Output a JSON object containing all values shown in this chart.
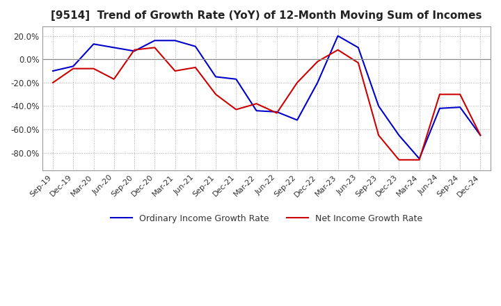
{
  "title": "[9514]  Trend of Growth Rate (YoY) of 12-Month Moving Sum of Incomes",
  "ylim": [
    -0.95,
    0.28
  ],
  "yticks": [
    0.2,
    0.0,
    -0.2,
    -0.4,
    -0.6,
    -0.8
  ],
  "ytick_labels": [
    "20.0%",
    "0.0%",
    "-20.0%",
    "-40.0%",
    "-60.0%",
    "-80.0%"
  ],
  "legend_labels": [
    "Ordinary Income Growth Rate",
    "Net Income Growth Rate"
  ],
  "line_colors": [
    "#0000cc",
    "#cc0000"
  ],
  "background_color": "#ffffff",
  "grid_color": "#aaaaaa",
  "grid_style": "dotted",
  "x_labels": [
    "Sep-19",
    "Dec-19",
    "Mar-20",
    "Jun-20",
    "Sep-20",
    "Dec-20",
    "Mar-21",
    "Jun-21",
    "Sep-21",
    "Dec-21",
    "Mar-22",
    "Jun-22",
    "Sep-22",
    "Dec-22",
    "Mar-23",
    "Jun-23",
    "Sep-23",
    "Dec-23",
    "Mar-24",
    "Jun-24",
    "Sep-24",
    "Dec-24"
  ],
  "ordinary_income": [
    -0.1,
    -0.06,
    0.13,
    0.1,
    0.07,
    0.16,
    0.16,
    0.11,
    -0.15,
    -0.17,
    -0.44,
    -0.45,
    -0.52,
    -0.2,
    0.2,
    0.1,
    -0.4,
    -0.65,
    -0.85,
    -0.42,
    -0.41,
    -0.65
  ],
  "net_income": [
    -0.2,
    -0.08,
    -0.08,
    -0.17,
    0.08,
    0.1,
    -0.1,
    -0.07,
    -0.3,
    -0.43,
    -0.38,
    -0.46,
    -0.2,
    -0.02,
    0.08,
    -0.03,
    -0.65,
    -0.86,
    -0.86,
    -0.3,
    -0.3,
    -0.65
  ]
}
